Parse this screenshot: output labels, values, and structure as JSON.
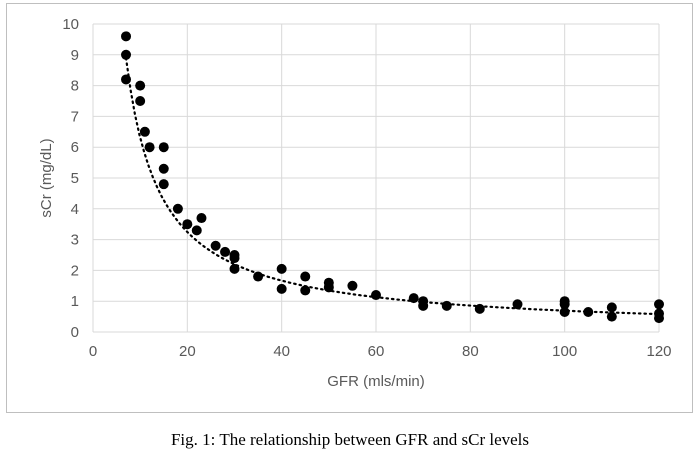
{
  "chart_data": {
    "type": "scatter",
    "xlabel": "GFR (mls/min)",
    "ylabel": "sCr (mg/dL)",
    "xlim": [
      0,
      120
    ],
    "ylim": [
      0,
      10
    ],
    "x_ticks": [
      0,
      20,
      40,
      60,
      80,
      100,
      120
    ],
    "y_ticks": [
      0,
      1,
      2,
      3,
      4,
      5,
      6,
      7,
      8,
      9,
      10
    ],
    "grid": "vertical and horizontal major gridlines",
    "legend": "none",
    "marker_color": "#000000",
    "points": [
      {
        "x": 7,
        "y": 9.6
      },
      {
        "x": 7,
        "y": 9.0
      },
      {
        "x": 7,
        "y": 8.2
      },
      {
        "x": 10,
        "y": 8.0
      },
      {
        "x": 10,
        "y": 7.5
      },
      {
        "x": 11,
        "y": 6.5
      },
      {
        "x": 12,
        "y": 6.0
      },
      {
        "x": 15,
        "y": 6.0
      },
      {
        "x": 15,
        "y": 5.3
      },
      {
        "x": 15,
        "y": 4.8
      },
      {
        "x": 18,
        "y": 4.0
      },
      {
        "x": 20,
        "y": 3.5
      },
      {
        "x": 22,
        "y": 3.3
      },
      {
        "x": 23,
        "y": 3.7
      },
      {
        "x": 26,
        "y": 2.8
      },
      {
        "x": 28,
        "y": 2.6
      },
      {
        "x": 30,
        "y": 2.5
      },
      {
        "x": 30,
        "y": 2.4
      },
      {
        "x": 30,
        "y": 2.05
      },
      {
        "x": 35,
        "y": 1.8
      },
      {
        "x": 40,
        "y": 2.05
      },
      {
        "x": 40,
        "y": 1.4
      },
      {
        "x": 45,
        "y": 1.8
      },
      {
        "x": 45,
        "y": 1.35
      },
      {
        "x": 50,
        "y": 1.6
      },
      {
        "x": 50,
        "y": 1.45
      },
      {
        "x": 55,
        "y": 1.5
      },
      {
        "x": 60,
        "y": 1.2
      },
      {
        "x": 68,
        "y": 1.1
      },
      {
        "x": 70,
        "y": 1.0
      },
      {
        "x": 70,
        "y": 0.85
      },
      {
        "x": 75,
        "y": 0.85
      },
      {
        "x": 82,
        "y": 0.75
      },
      {
        "x": 90,
        "y": 0.9
      },
      {
        "x": 100,
        "y": 1.0
      },
      {
        "x": 100,
        "y": 0.9
      },
      {
        "x": 100,
        "y": 0.65
      },
      {
        "x": 105,
        "y": 0.65
      },
      {
        "x": 110,
        "y": 0.8
      },
      {
        "x": 110,
        "y": 0.5
      },
      {
        "x": 120,
        "y": 0.9
      },
      {
        "x": 120,
        "y": 0.6
      },
      {
        "x": 120,
        "y": 0.45
      }
    ],
    "trendline": {
      "type": "power",
      "a": 57.6,
      "b": -0.96,
      "x_range": [
        7,
        120
      ]
    },
    "caption": "Fig. 1: The relationship between GFR and sCr levels"
  }
}
